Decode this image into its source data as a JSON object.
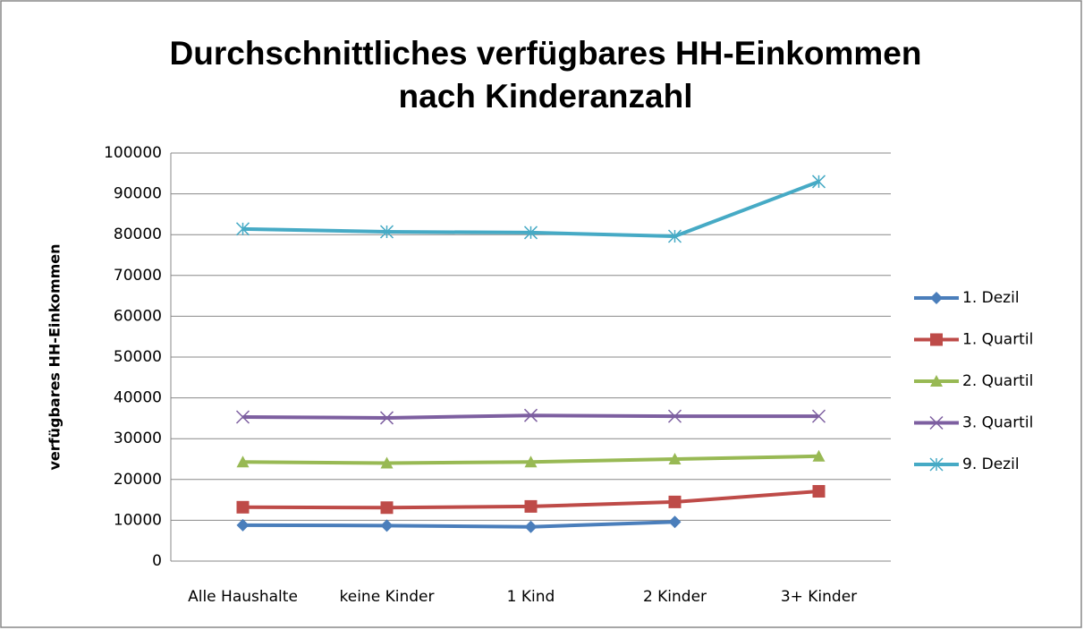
{
  "chart_data": {
    "type": "line",
    "title": [
      "Durchschnittliches verfügbares HH-Einkommen",
      "nach Kinderanzahl"
    ],
    "y_label": "verfügbares HH-Einkommen",
    "categories": [
      "Alle Haushalte",
      "keine Kinder",
      "1 Kind",
      "2 Kinder",
      "3+ Kinder"
    ],
    "series": [
      {
        "name": "1. Dezil",
        "color": "#4a7ebb",
        "marker": "diamond",
        "values": [
          8800,
          8700,
          8400,
          9600,
          null
        ]
      },
      {
        "name": "1. Quartil",
        "color": "#be4b48",
        "marker": "square",
        "values": [
          13200,
          13100,
          13400,
          14500,
          17100
        ]
      },
      {
        "name": "2. Quartil",
        "color": "#98b954",
        "marker": "triangle",
        "values": [
          24300,
          24000,
          24300,
          25000,
          25700
        ]
      },
      {
        "name": "3. Quartil",
        "color": "#7d5fa0",
        "marker": "x",
        "values": [
          35300,
          35100,
          35700,
          35500,
          35500
        ]
      },
      {
        "name": "9. Dezil",
        "color": "#46aac5",
        "marker": "star",
        "values": [
          81400,
          80700,
          80500,
          79600,
          93000
        ]
      }
    ],
    "ylim": [
      0,
      100000
    ],
    "yticks": [
      0,
      10000,
      20000,
      30000,
      40000,
      50000,
      60000,
      70000,
      80000,
      90000,
      100000
    ],
    "grid": true,
    "legend": "right"
  }
}
